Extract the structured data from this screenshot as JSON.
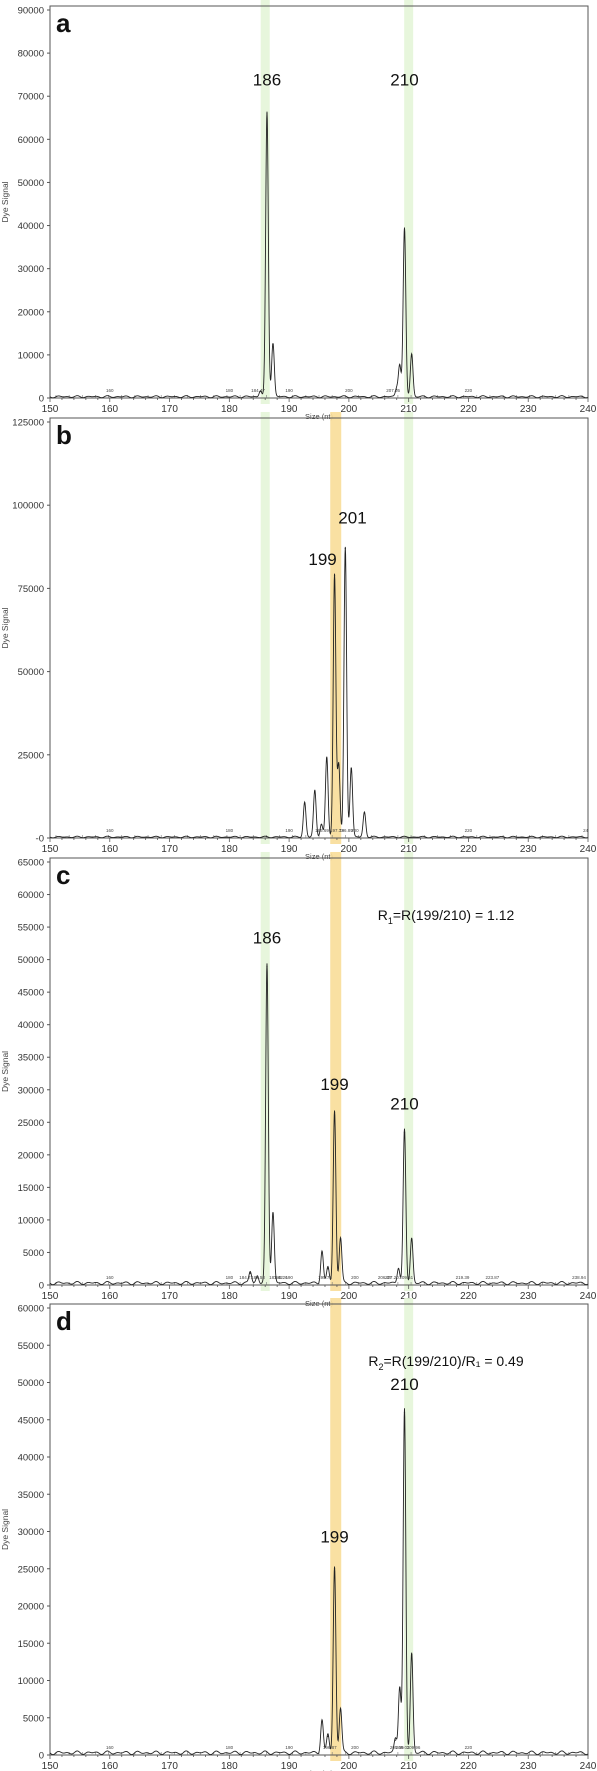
{
  "chart_data": [
    {
      "type": "line",
      "panel_label": "a",
      "xlabel": "Size (nt)",
      "ylabel": "Dye Signal",
      "xlim": [
        150,
        240
      ],
      "ylim": [
        0,
        90000
      ],
      "xticks": [
        150,
        160,
        170,
        180,
        190,
        200,
        210,
        220,
        230,
        240
      ],
      "yticks": [
        0,
        10000,
        20000,
        30000,
        40000,
        50000,
        60000,
        70000,
        80000,
        90000
      ],
      "ytick_labels": [
        "0",
        "10000",
        "20000",
        "30000",
        "40000",
        "50000",
        "60000",
        "70000",
        "80000",
        "90000"
      ],
      "highlight_bands": [
        {
          "x": 186,
          "color": "#e4f5d8"
        },
        {
          "x": 210,
          "color": "#e4f5d8"
        }
      ],
      "peaks": [
        {
          "x": 185.2,
          "y": 1500
        },
        {
          "x": 186.3,
          "y": 66000
        },
        {
          "x": 187.3,
          "y": 12500
        },
        {
          "x": 208.0,
          "y": 2000
        },
        {
          "x": 208.5,
          "y": 7500
        },
        {
          "x": 209.3,
          "y": 39000
        },
        {
          "x": 210.5,
          "y": 10000
        }
      ],
      "annotations": [
        {
          "text": "186",
          "x": 186.3,
          "y": 72500
        },
        {
          "text": "210",
          "x": 209.3,
          "y": 72500
        }
      ],
      "small_labels": [
        {
          "text": "160",
          "x": 160
        },
        {
          "text": "180",
          "x": 180
        },
        {
          "text": "184.47",
          "x": 184.8
        },
        {
          "text": "190",
          "x": 190
        },
        {
          "text": "200",
          "x": 200
        },
        {
          "text": "207.66",
          "x": 207.4
        },
        {
          "text": "220",
          "x": 220
        }
      ]
    },
    {
      "type": "line",
      "panel_label": "b",
      "xlabel": "Size (nt)",
      "ylabel": "Dye Signal",
      "xlim": [
        150,
        240
      ],
      "ylim": [
        0,
        125000
      ],
      "xticks": [
        150,
        160,
        170,
        180,
        190,
        200,
        210,
        220,
        230,
        240
      ],
      "yticks": [
        0,
        25000,
        50000,
        75000,
        100000,
        125000
      ],
      "ytick_labels": [
        "-0",
        "25000",
        "50000",
        "75000",
        "100000",
        "125000"
      ],
      "highlight_bands": [
        {
          "x": 186,
          "color": "#e4f5d8"
        },
        {
          "x": 197.8,
          "color": "#f8dd98"
        },
        {
          "x": 210,
          "color": "#e4f5d8"
        }
      ],
      "peaks": [
        {
          "x": 192.6,
          "y": 10500
        },
        {
          "x": 194.3,
          "y": 14000
        },
        {
          "x": 195.4,
          "y": 4000
        },
        {
          "x": 196.3,
          "y": 24000
        },
        {
          "x": 197.6,
          "y": 79000
        },
        {
          "x": 198.3,
          "y": 22000
        },
        {
          "x": 199.4,
          "y": 87000
        },
        {
          "x": 200.4,
          "y": 21000
        },
        {
          "x": 202.6,
          "y": 7500
        }
      ],
      "annotations": [
        {
          "text": "199",
          "x": 195.6,
          "y": 82000
        },
        {
          "text": "201",
          "x": 200.6,
          "y": 94500
        }
      ],
      "small_labels": [
        {
          "text": "160",
          "x": 160
        },
        {
          "text": "180",
          "x": 180
        },
        {
          "text": "190",
          "x": 190
        },
        {
          "text": "197.73",
          "x": 198.0
        },
        {
          "text": "200",
          "x": 201.0
        },
        {
          "text": "195.69",
          "x": 195.5
        },
        {
          "text": "196.89",
          "x": 199.5
        },
        {
          "text": "220",
          "x": 220
        },
        {
          "text": "24",
          "x": 239.6
        }
      ]
    },
    {
      "type": "line",
      "panel_label": "c",
      "xlabel": "Size (nt)",
      "ylabel": "Dye Signal",
      "xlim": [
        150,
        240
      ],
      "ylim": [
        0,
        65000
      ],
      "xticks": [
        150,
        160,
        170,
        180,
        190,
        200,
        210,
        220,
        230,
        240
      ],
      "yticks": [
        0,
        5000,
        10000,
        15000,
        20000,
        25000,
        30000,
        35000,
        40000,
        45000,
        50000,
        55000,
        60000,
        65000
      ],
      "ytick_labels": [
        "0",
        "5000",
        "10000",
        "15000",
        "20000",
        "25000",
        "30000",
        "35000",
        "40000",
        "45000",
        "50000",
        "55000",
        "60000",
        "65000"
      ],
      "highlight_bands": [
        {
          "x": 186,
          "color": "#e4f5d8"
        },
        {
          "x": 197.8,
          "color": "#f8dd98"
        },
        {
          "x": 210,
          "color": "#e4f5d8"
        }
      ],
      "peaks": [
        {
          "x": 183.5,
          "y": 1800
        },
        {
          "x": 184.7,
          "y": 1200
        },
        {
          "x": 186.3,
          "y": 49000
        },
        {
          "x": 187.3,
          "y": 11000
        },
        {
          "x": 195.5,
          "y": 5000
        },
        {
          "x": 196.5,
          "y": 2500
        },
        {
          "x": 197.6,
          "y": 26500
        },
        {
          "x": 198.6,
          "y": 7000
        },
        {
          "x": 208.3,
          "y": 2500
        },
        {
          "x": 209.3,
          "y": 23500
        },
        {
          "x": 210.5,
          "y": 7000
        }
      ],
      "annotations": [
        {
          "text": "186",
          "x": 186.3,
          "y": 52500
        },
        {
          "text": "199",
          "x": 197.6,
          "y": 30000
        },
        {
          "text": "210",
          "x": 209.3,
          "y": 27000
        }
      ],
      "formula": {
        "prefix": "R",
        "sub": "1",
        "rest": "=R(199/210) = 1.12"
      },
      "small_labels": [
        {
          "text": "160",
          "x": 160
        },
        {
          "text": "180",
          "x": 180
        },
        {
          "text": "184.71",
          "x": 182.8
        },
        {
          "text": "185.58",
          "x": 184.8
        },
        {
          "text": "187.42",
          "x": 187.8
        },
        {
          "text": "188.26",
          "x": 188.6
        },
        {
          "text": "190",
          "x": 190
        },
        {
          "text": "195.75",
          "x": 196.0
        },
        {
          "text": "200",
          "x": 201.0
        },
        {
          "text": "206.37",
          "x": 206.0
        },
        {
          "text": "207.20",
          "x": 207.2
        },
        {
          "text": "209.61",
          "x": 209.6
        },
        {
          "text": "219.39",
          "x": 219.0
        },
        {
          "text": "223.87",
          "x": 224.0
        },
        {
          "text": "238.94",
          "x": 238.5
        }
      ]
    },
    {
      "type": "line",
      "panel_label": "d",
      "xlabel": "Size (nt)",
      "ylabel": "Dye Signal",
      "xlim": [
        150,
        240
      ],
      "ylim": [
        0,
        60000
      ],
      "xticks": [
        150,
        160,
        170,
        180,
        190,
        200,
        210,
        220,
        230,
        240
      ],
      "yticks": [
        0,
        5000,
        10000,
        15000,
        20000,
        25000,
        30000,
        35000,
        40000,
        45000,
        50000,
        55000,
        60000
      ],
      "ytick_labels": [
        "0",
        "5000",
        "10000",
        "15000",
        "20000",
        "25000",
        "30000",
        "35000",
        "40000",
        "45000",
        "50000",
        "55000",
        "60000"
      ],
      "highlight_bands": [
        {
          "x": 197.8,
          "color": "#f8dd98"
        },
        {
          "x": 210,
          "color": "#e4f5d8"
        }
      ],
      "peaks": [
        {
          "x": 195.5,
          "y": 4500
        },
        {
          "x": 196.5,
          "y": 2500
        },
        {
          "x": 197.6,
          "y": 25000
        },
        {
          "x": 198.6,
          "y": 6000
        },
        {
          "x": 207.8,
          "y": 2000
        },
        {
          "x": 208.5,
          "y": 9000
        },
        {
          "x": 209.3,
          "y": 46000
        },
        {
          "x": 210.5,
          "y": 13500
        }
      ],
      "annotations": [
        {
          "text": "199",
          "x": 197.6,
          "y": 28500
        },
        {
          "text": "210",
          "x": 209.3,
          "y": 49000
        }
      ],
      "formula": {
        "prefix": "R",
        "sub": "2",
        "rest": "=R(199/210)/R₁ = 0.49"
      },
      "small_labels": [
        {
          "text": "160",
          "x": 160
        },
        {
          "text": "180",
          "x": 180
        },
        {
          "text": "190",
          "x": 190
        },
        {
          "text": "196.87",
          "x": 196.8
        },
        {
          "text": "200",
          "x": 201.0
        },
        {
          "text": "205.59",
          "x": 208.0
        },
        {
          "text": "209.01",
          "x": 209.0
        },
        {
          "text": "209.96",
          "x": 210.8
        },
        {
          "text": "220",
          "x": 220
        }
      ]
    }
  ]
}
